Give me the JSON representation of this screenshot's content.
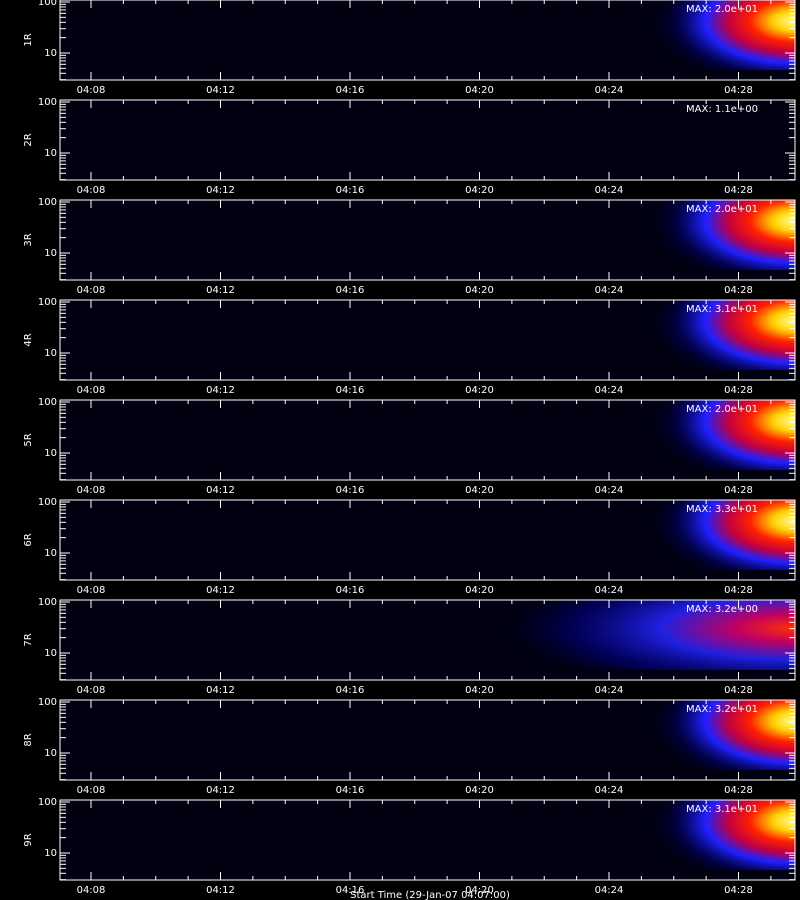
{
  "panels": [
    {
      "ylabel": "1R",
      "max_label": "MAX: 2.0e+01"
    },
    {
      "ylabel": "2R",
      "max_label": "MAX: 1.1e+00"
    },
    {
      "ylabel": "3R",
      "max_label": "MAX: 2.0e+01"
    },
    {
      "ylabel": "4R",
      "max_label": "MAX: 3.1e+01"
    },
    {
      "ylabel": "5R",
      "max_label": "MAX: 2.0e+01"
    },
    {
      "ylabel": "6R",
      "max_label": "MAX: 3.3e+01"
    },
    {
      "ylabel": "7R",
      "max_label": "MAX: 3.2e+00"
    },
    {
      "ylabel": "8R",
      "max_label": "MAX: 3.2e+01"
    },
    {
      "ylabel": "9R",
      "max_label": "MAX: 3.1e+01"
    }
  ],
  "yticks": [
    100,
    10
  ],
  "xticks": [
    "04:08",
    "04:12",
    "04:16",
    "04:20",
    "04:24",
    "04:28"
  ],
  "footer": "Start Time (29-Jan-07 04:07:00)"
}
